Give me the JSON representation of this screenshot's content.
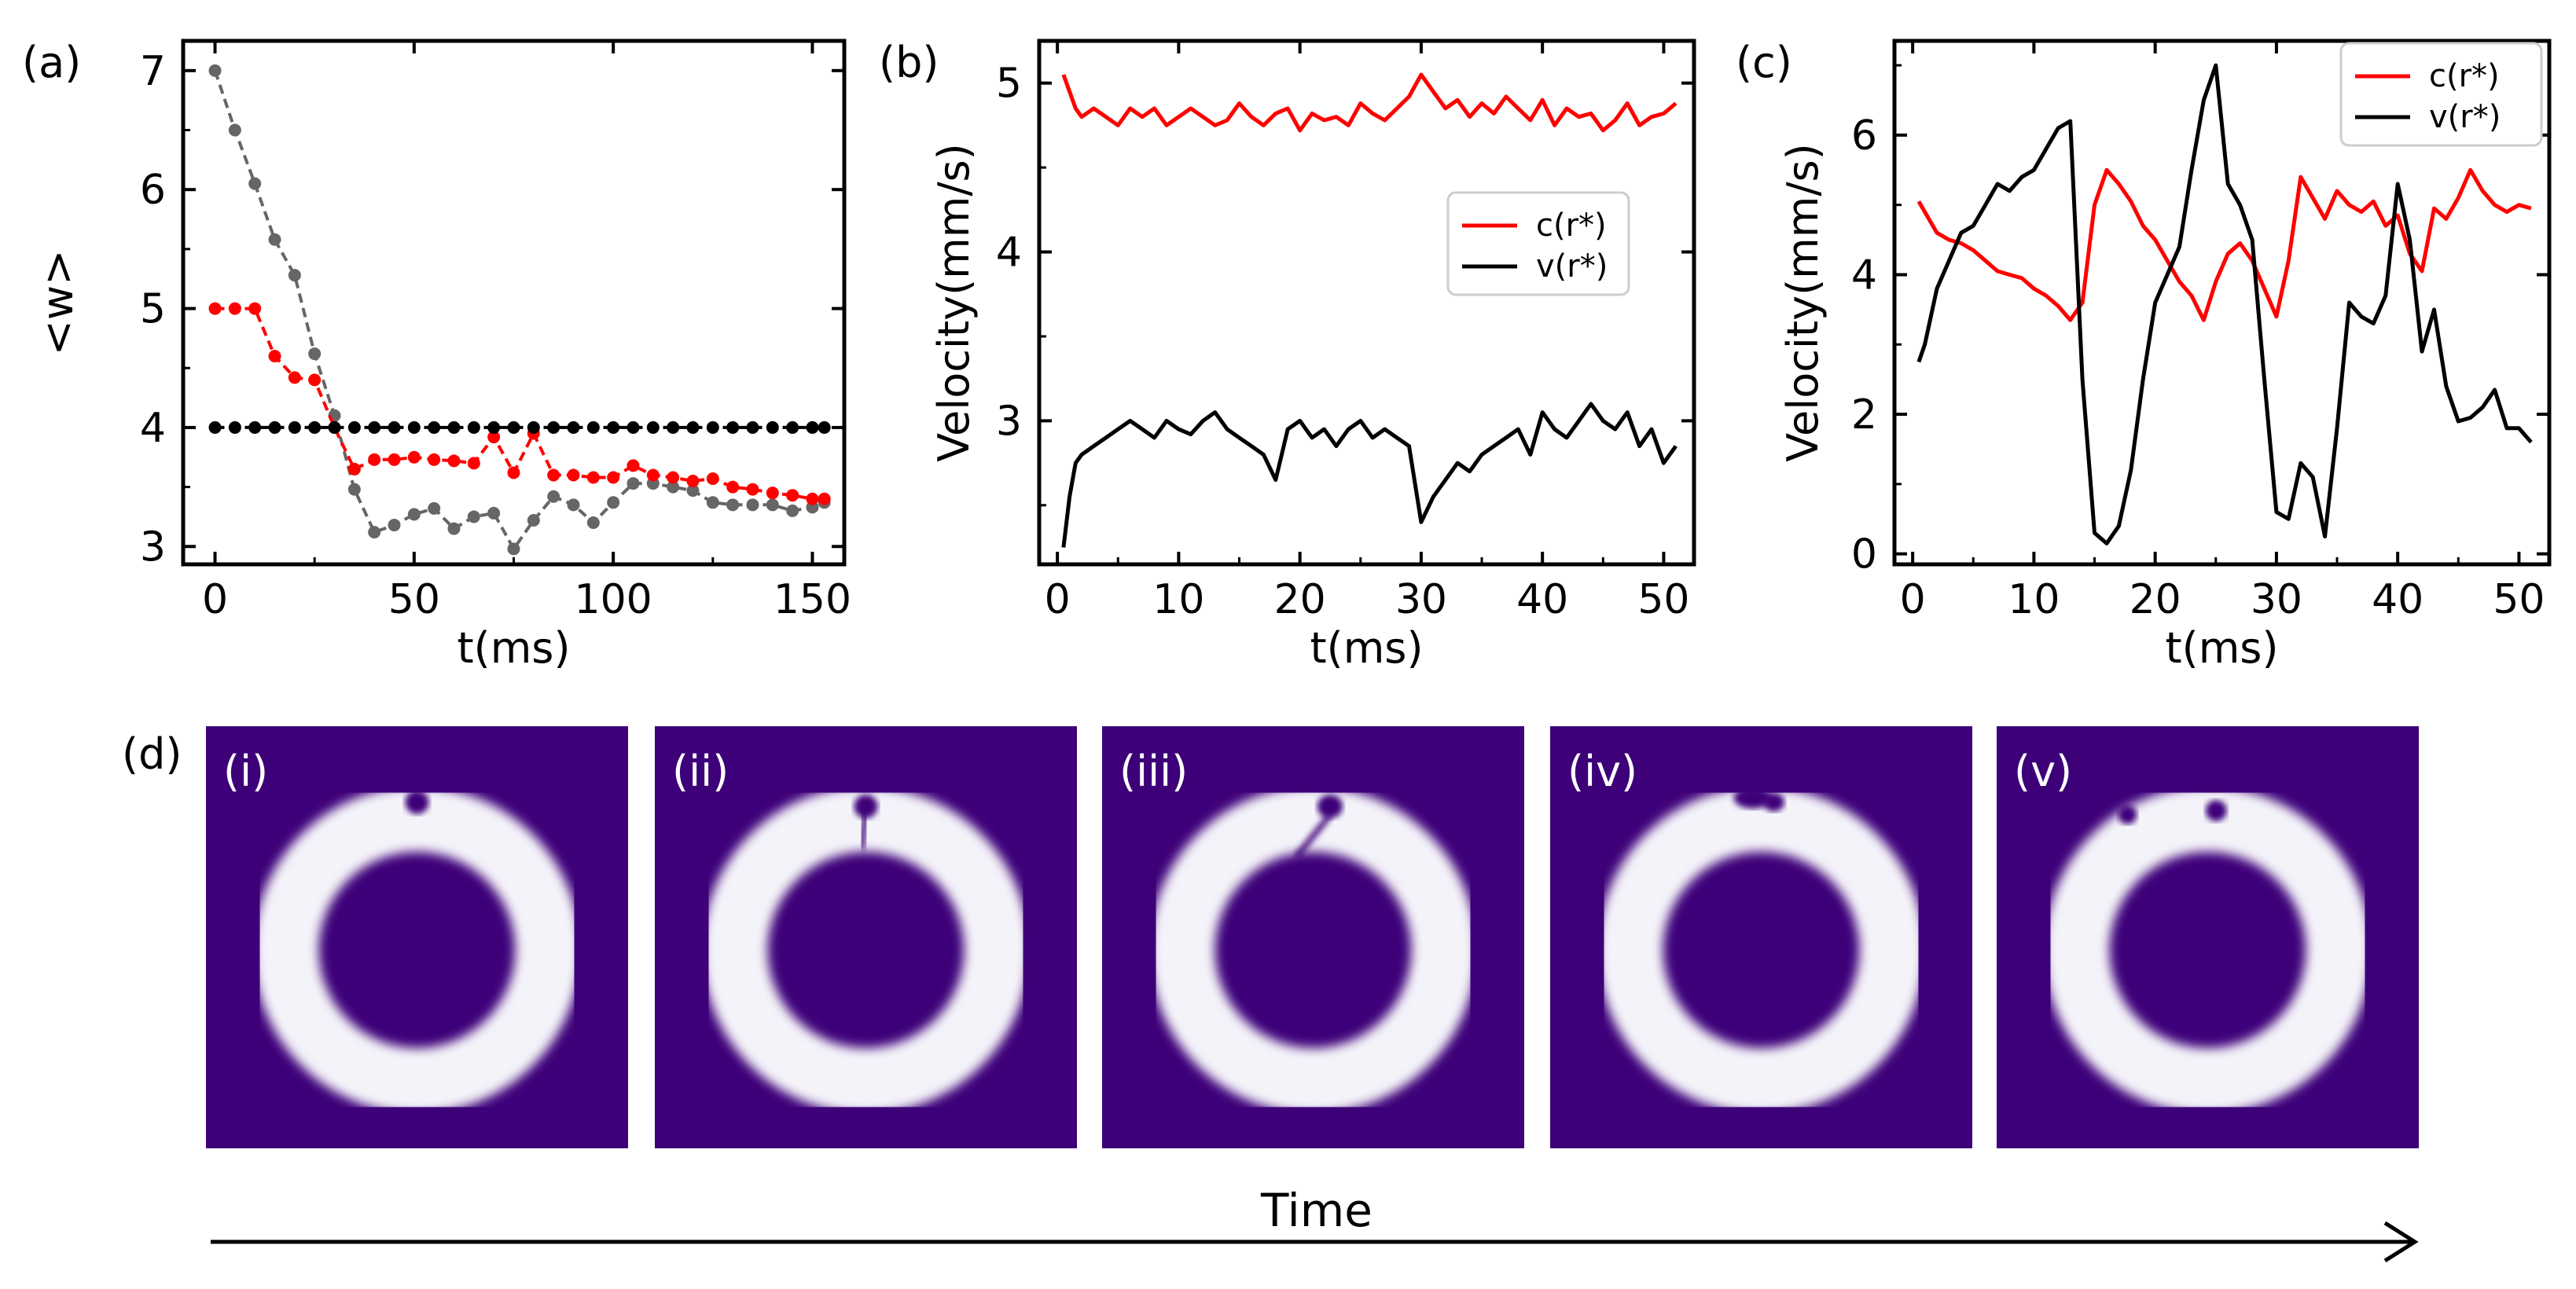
{
  "chart_data": [
    {
      "id": "a",
      "panel_label": "(a)",
      "type": "line",
      "xlabel": "t(ms)",
      "ylabel": "<w>",
      "xlim": [
        -8,
        158
      ],
      "ylim": [
        2.85,
        7.25
      ],
      "xticks": [
        0,
        50,
        100,
        150
      ],
      "yticks": [
        3,
        4,
        5,
        6,
        7
      ],
      "series": [
        {
          "name": "gray",
          "color": "#666666",
          "dashed": true,
          "markers": true,
          "x": [
            0,
            5,
            10,
            15,
            20,
            25,
            30,
            35,
            40,
            45,
            50,
            55,
            60,
            65,
            70,
            75,
            80,
            85,
            90,
            95,
            100,
            105,
            110,
            115,
            120,
            125,
            130,
            135,
            140,
            145,
            150,
            153
          ],
          "y": [
            7.0,
            6.5,
            6.05,
            5.58,
            5.28,
            4.62,
            4.1,
            3.48,
            3.12,
            3.18,
            3.27,
            3.32,
            3.15,
            3.25,
            3.28,
            2.98,
            3.22,
            3.42,
            3.35,
            3.2,
            3.37,
            3.53,
            3.53,
            3.5,
            3.47,
            3.37,
            3.35,
            3.35,
            3.35,
            3.3,
            3.33,
            3.37
          ]
        },
        {
          "name": "red",
          "color": "#ff0000",
          "dashed": true,
          "markers": true,
          "x": [
            0,
            5,
            10,
            15,
            20,
            25,
            30,
            35,
            40,
            45,
            50,
            55,
            60,
            65,
            70,
            75,
            80,
            85,
            90,
            95,
            100,
            105,
            110,
            115,
            120,
            125,
            130,
            135,
            140,
            145,
            150,
            153
          ],
          "y": [
            5.0,
            5.0,
            5.0,
            4.6,
            4.42,
            4.4,
            4.0,
            3.65,
            3.73,
            3.73,
            3.75,
            3.73,
            3.72,
            3.7,
            3.92,
            3.62,
            3.95,
            3.6,
            3.6,
            3.58,
            3.58,
            3.68,
            3.6,
            3.58,
            3.55,
            3.57,
            3.5,
            3.48,
            3.45,
            3.43,
            3.4,
            3.4
          ]
        },
        {
          "name": "black",
          "color": "#000000",
          "dashed": true,
          "markers": true,
          "x": [
            0,
            5,
            10,
            15,
            20,
            25,
            30,
            35,
            40,
            45,
            50,
            55,
            60,
            65,
            70,
            75,
            80,
            85,
            90,
            95,
            100,
            105,
            110,
            115,
            120,
            125,
            130,
            135,
            140,
            145,
            150,
            153
          ],
          "y": [
            4,
            4,
            4,
            4,
            4,
            4,
            4,
            4,
            4,
            4,
            4,
            4,
            4,
            4,
            4,
            4,
            4,
            4,
            4,
            4,
            4,
            4,
            4,
            4,
            4,
            4,
            4,
            4,
            4,
            4,
            4,
            4
          ]
        }
      ]
    },
    {
      "id": "b",
      "panel_label": "(b)",
      "type": "line",
      "xlabel": "t(ms)",
      "ylabel": "Velocity(mm/s)",
      "xlim": [
        -1.5,
        52.5
      ],
      "ylim": [
        2.15,
        5.25
      ],
      "xticks": [
        0,
        10,
        20,
        30,
        40,
        50
      ],
      "yticks": [
        3,
        4,
        5
      ],
      "legend": {
        "position": "center-right",
        "entries": [
          {
            "label": "c(r*)",
            "color": "#ff0000"
          },
          {
            "label": "v(r*)",
            "color": "#000000"
          }
        ]
      },
      "series": [
        {
          "name": "c(r*)",
          "color": "#ff0000",
          "x": [
            0.5,
            1,
            1.5,
            2,
            3,
            4,
            5,
            6,
            7,
            8,
            9,
            10,
            11,
            12,
            13,
            14,
            15,
            16,
            17,
            18,
            19,
            20,
            21,
            22,
            23,
            24,
            25,
            26,
            27,
            28,
            29,
            30,
            31,
            32,
            33,
            34,
            35,
            36,
            37,
            38,
            39,
            40,
            41,
            42,
            43,
            44,
            45,
            46,
            47,
            48,
            49,
            50,
            51
          ],
          "y": [
            5.05,
            4.95,
            4.85,
            4.8,
            4.85,
            4.8,
            4.75,
            4.85,
            4.8,
            4.85,
            4.75,
            4.8,
            4.85,
            4.8,
            4.75,
            4.78,
            4.88,
            4.8,
            4.75,
            4.82,
            4.85,
            4.72,
            4.82,
            4.78,
            4.8,
            4.75,
            4.88,
            4.82,
            4.78,
            4.85,
            4.92,
            5.05,
            4.95,
            4.85,
            4.9,
            4.8,
            4.88,
            4.82,
            4.92,
            4.85,
            4.78,
            4.9,
            4.75,
            4.85,
            4.8,
            4.82,
            4.72,
            4.78,
            4.88,
            4.75,
            4.8,
            4.82,
            4.88
          ]
        },
        {
          "name": "v(r*)",
          "color": "#000000",
          "x": [
            0.5,
            1,
            1.5,
            2,
            3,
            4,
            5,
            6,
            7,
            8,
            9,
            10,
            11,
            12,
            13,
            14,
            15,
            16,
            17,
            18,
            19,
            20,
            21,
            22,
            23,
            24,
            25,
            26,
            27,
            28,
            29,
            30,
            31,
            32,
            33,
            34,
            35,
            36,
            37,
            38,
            39,
            40,
            41,
            42,
            43,
            44,
            45,
            46,
            47,
            48,
            49,
            50,
            51
          ],
          "y": [
            2.25,
            2.55,
            2.75,
            2.8,
            2.85,
            2.9,
            2.95,
            3.0,
            2.95,
            2.9,
            3.0,
            2.95,
            2.92,
            3.0,
            3.05,
            2.95,
            2.9,
            2.85,
            2.8,
            2.65,
            2.95,
            3.0,
            2.9,
            2.95,
            2.85,
            2.95,
            3.0,
            2.9,
            2.95,
            2.9,
            2.85,
            2.4,
            2.55,
            2.65,
            2.75,
            2.7,
            2.8,
            2.85,
            2.9,
            2.95,
            2.8,
            3.05,
            2.95,
            2.9,
            3.0,
            3.1,
            3.0,
            2.95,
            3.05,
            2.85,
            2.95,
            2.75,
            2.85
          ]
        }
      ]
    },
    {
      "id": "c",
      "panel_label": "(c)",
      "type": "line",
      "xlabel": "t(ms)",
      "ylabel": "Velocity(mm/s)",
      "xlim": [
        -1.5,
        52.5
      ],
      "ylim": [
        -0.15,
        7.35
      ],
      "xticks": [
        0,
        10,
        20,
        30,
        40,
        50
      ],
      "yticks": [
        0,
        2,
        4,
        6
      ],
      "legend": {
        "position": "top-right",
        "entries": [
          {
            "label": "c(r*)",
            "color": "#ff0000"
          },
          {
            "label": "v(r*)",
            "color": "#000000"
          }
        ]
      },
      "series": [
        {
          "name": "c(r*)",
          "color": "#ff0000",
          "x": [
            0.5,
            1,
            2,
            3,
            4,
            5,
            6,
            7,
            8,
            9,
            10,
            11,
            12,
            13,
            14,
            15,
            16,
            17,
            18,
            19,
            20,
            21,
            22,
            23,
            24,
            25,
            26,
            27,
            28,
            29,
            30,
            31,
            32,
            33,
            34,
            35,
            36,
            37,
            38,
            39,
            40,
            41,
            42,
            43,
            44,
            45,
            46,
            47,
            48,
            49,
            50,
            51
          ],
          "y": [
            5.05,
            4.9,
            4.6,
            4.5,
            4.45,
            4.35,
            4.2,
            4.05,
            4.0,
            3.95,
            3.8,
            3.7,
            3.55,
            3.35,
            3.6,
            5.0,
            5.5,
            5.3,
            5.05,
            4.7,
            4.5,
            4.2,
            3.9,
            3.7,
            3.35,
            3.9,
            4.3,
            4.45,
            4.2,
            3.8,
            3.4,
            4.2,
            5.4,
            5.1,
            4.8,
            5.2,
            5.0,
            4.9,
            5.05,
            4.7,
            4.85,
            4.3,
            4.05,
            4.95,
            4.8,
            5.1,
            5.5,
            5.2,
            5.0,
            4.9,
            5.0,
            4.95
          ]
        },
        {
          "name": "v(r*)",
          "color": "#000000",
          "x": [
            0.5,
            1,
            2,
            3,
            4,
            5,
            6,
            7,
            8,
            9,
            10,
            11,
            12,
            13,
            14,
            15,
            16,
            17,
            18,
            19,
            20,
            21,
            22,
            23,
            24,
            25,
            26,
            27,
            28,
            29,
            30,
            31,
            32,
            33,
            34,
            35,
            36,
            37,
            38,
            39,
            40,
            41,
            42,
            43,
            44,
            45,
            46,
            47,
            48,
            49,
            50,
            51
          ],
          "y": [
            2.75,
            3.0,
            3.8,
            4.2,
            4.6,
            4.7,
            5.0,
            5.3,
            5.2,
            5.4,
            5.5,
            5.8,
            6.1,
            6.2,
            2.5,
            0.3,
            0.15,
            0.4,
            1.2,
            2.5,
            3.6,
            4.0,
            4.4,
            5.5,
            6.5,
            7.0,
            5.3,
            5.0,
            4.5,
            2.5,
            0.6,
            0.5,
            1.3,
            1.1,
            0.25,
            1.8,
            3.6,
            3.4,
            3.3,
            3.7,
            5.3,
            4.5,
            2.9,
            3.5,
            2.4,
            1.9,
            1.95,
            2.1,
            2.35,
            1.8,
            1.8,
            1.6
          ]
        }
      ]
    }
  ],
  "panel_d": {
    "panel_label": "(d)",
    "frames": [
      "(i)",
      "(ii)",
      "(iii)",
      "(iv)",
      "(v)"
    ],
    "background_color": "#3d0079",
    "ring_color": "#f4f3f9",
    "arrow_label": "Time"
  },
  "colors": {
    "red": "#ff0000",
    "black": "#000000",
    "gray": "#666666"
  }
}
